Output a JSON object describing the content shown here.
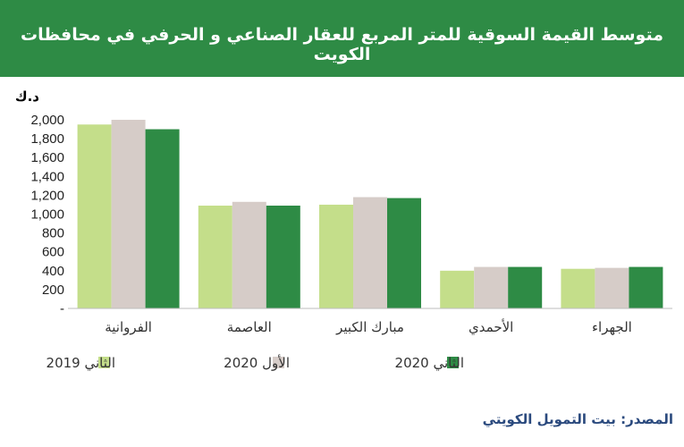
{
  "header": {
    "title": "متوسط القيمة السوقية للمتر المربع للعقار الصناعي و الحرفي في محافظات الكويت"
  },
  "chart_data": {
    "type": "bar",
    "unit_label": "د.ك",
    "categories": [
      "الفروانية",
      "العاصمة",
      "مبارك الكبير",
      "الأحمدي",
      "الجهراء"
    ],
    "series": [
      {
        "name": "الثاني 2019",
        "color": "#c4de8a",
        "values": [
          1950,
          1090,
          1100,
          400,
          420
        ]
      },
      {
        "name": "الأول 2020",
        "color": "#d6ccc8",
        "values": [
          2000,
          1130,
          1180,
          440,
          430
        ]
      },
      {
        "name": "الثاني 2020",
        "color": "#2e8b45",
        "values": [
          1900,
          1090,
          1170,
          440,
          440
        ]
      }
    ],
    "ylim": [
      0,
      2000
    ],
    "yticks": [
      0,
      200,
      400,
      600,
      800,
      1000,
      1200,
      1400,
      1600,
      1800,
      2000
    ],
    "ytick_labels": [
      "-",
      "200",
      "400",
      "600",
      "800",
      "1,000",
      "1,200",
      "1,400",
      "1,600",
      "1,800",
      "2,000"
    ],
    "legend_position": "bottom",
    "grid": false
  },
  "footer": {
    "source": "المصدر: بيت التمويل الكويتي"
  }
}
